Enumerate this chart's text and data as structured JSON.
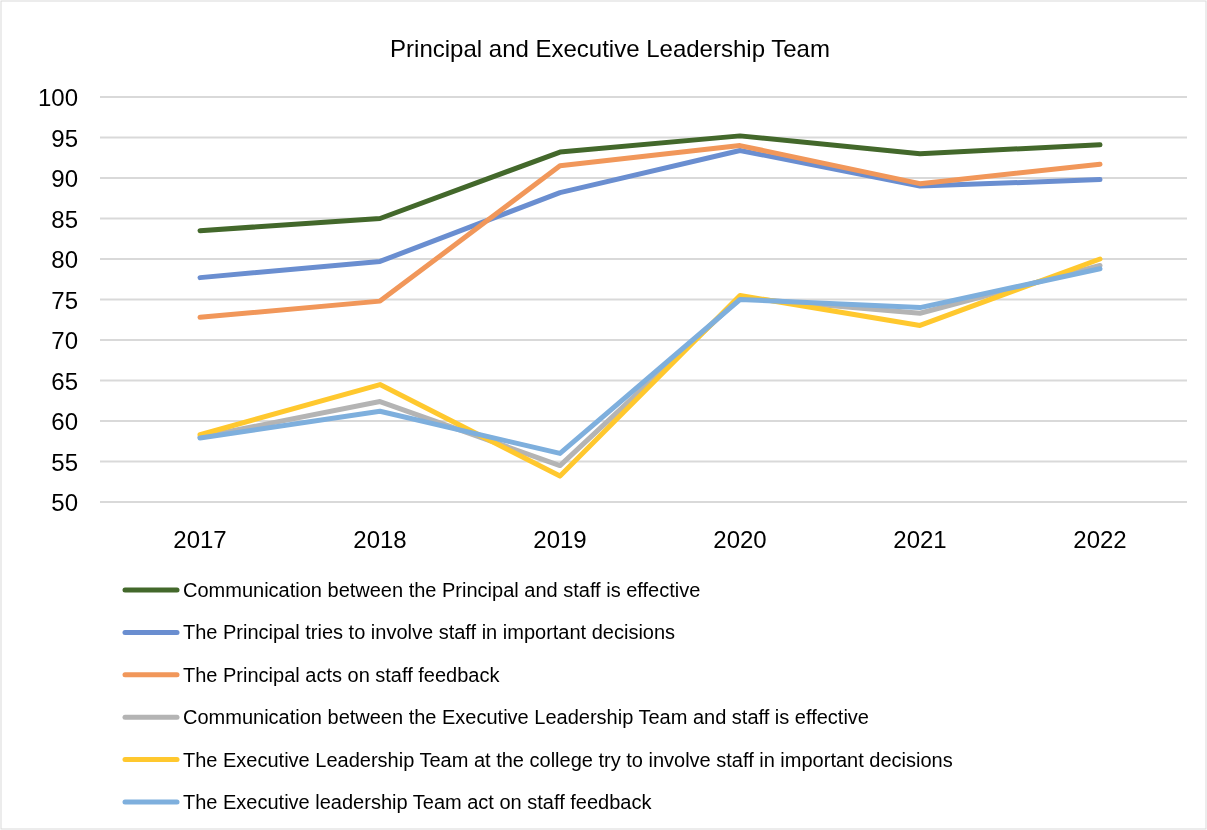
{
  "chart_data": {
    "type": "line",
    "title": "Principal and Executive Leadership Team",
    "categories": [
      "2017",
      "2018",
      "2019",
      "2020",
      "2021",
      "2022"
    ],
    "series": [
      {
        "name": "Communication between the Principal and staff is effective",
        "color": "#43682b",
        "values": [
          83.5,
          85,
          93.2,
          95.2,
          93,
          94.1
        ]
      },
      {
        "name": "The Principal tries to involve staff in important decisions",
        "color": "#6a8ed0",
        "values": [
          77.7,
          79.7,
          88.2,
          93.4,
          89,
          89.8
        ]
      },
      {
        "name": "The Principal acts on staff feedback",
        "color": "#f1975a",
        "values": [
          72.8,
          74.8,
          91.5,
          94,
          89.3,
          91.7
        ]
      },
      {
        "name": "Communication between the Executive Leadership Team and staff is effective",
        "color": "#b4b4b4",
        "values": [
          58,
          62.4,
          54.5,
          75.2,
          73.3,
          79.2
        ]
      },
      {
        "name": "The Executive Leadership Team at the college try to involve staff in important decisions",
        "color": "#ffc82e",
        "values": [
          58.3,
          64.5,
          53.2,
          75.5,
          71.8,
          80
        ]
      },
      {
        "name": "The Executive leadership Team act on staff feedback",
        "color": "#7eafdd",
        "values": [
          57.9,
          61.2,
          56,
          75,
          74,
          78.8
        ]
      }
    ],
    "ylim": [
      50,
      100
    ],
    "yticks": [
      50,
      55,
      60,
      65,
      70,
      75,
      80,
      85,
      90,
      95,
      100
    ],
    "grid": "y",
    "legend": "bottom",
    "line_style": "solid"
  }
}
